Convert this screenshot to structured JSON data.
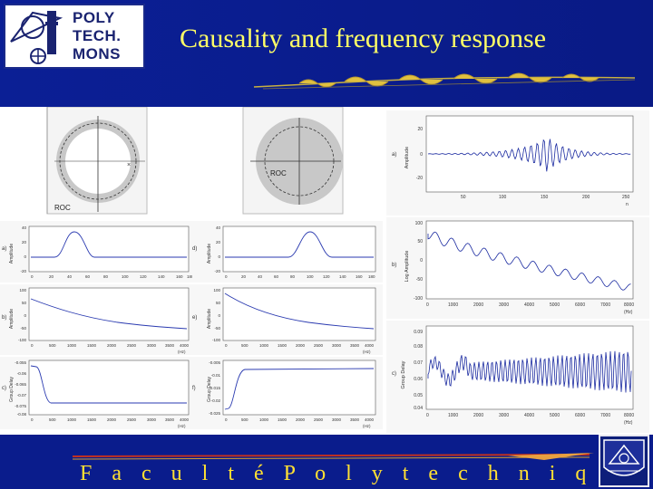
{
  "header": {
    "title": "Causality and frequency response",
    "logo_lines": [
      "POLY",
      "TECH.",
      "MONS"
    ]
  },
  "footer": {
    "text": "F a c u l t é   P o l y t e c h n i q u e  d e  M o n s"
  },
  "roc_diagrams": [
    {
      "label": "ROC"
    },
    {
      "label": "ROC"
    }
  ],
  "plots": {
    "a": {
      "panel": "a)",
      "ylabel": "Amplitude",
      "xticks": [
        "0",
        "20",
        "40",
        "60",
        "80",
        "100",
        "120",
        "140",
        "160",
        "180"
      ],
      "yticks": [
        "40",
        "20",
        "0",
        "-20"
      ]
    },
    "b": {
      "panel": "b)",
      "ylabel": "Amplitude",
      "xticks": [
        "0",
        "500",
        "1000",
        "1500",
        "2000",
        "2500",
        "3000",
        "3500",
        "4000"
      ],
      "xunit": "(Hz)",
      "yticks": [
        "100",
        "50",
        "0",
        "-50",
        "-100"
      ]
    },
    "c": {
      "panel": "c)",
      "ylabel": "Group Delay",
      "xticks": [
        "0",
        "500",
        "1000",
        "1500",
        "2000",
        "2500",
        "3000",
        "3500",
        "4000"
      ],
      "xunit": "(Hz)",
      "yticks": [
        "-0.055",
        "-0.06",
        "-0.065",
        "-0.07",
        "-0.075",
        "-0.08"
      ]
    },
    "d": {
      "panel": "d)",
      "ylabel": "Amplitude",
      "xticks": [
        "0",
        "20",
        "40",
        "60",
        "80",
        "100",
        "120",
        "140",
        "160",
        "180"
      ],
      "yticks": [
        "40",
        "20",
        "0",
        "-20"
      ]
    },
    "e": {
      "panel": "e)",
      "ylabel": "Amplitude",
      "xticks": [
        "0",
        "500",
        "1000",
        "1500",
        "2000",
        "2500",
        "3000",
        "3500",
        "4000"
      ],
      "xunit": "(Hz)",
      "yticks": [
        "100",
        "50",
        "0",
        "-50",
        "-100"
      ]
    },
    "f": {
      "panel": "f)",
      "ylabel": "Group Delay",
      "xticks": [
        "0",
        "500",
        "1000",
        "1500",
        "2000",
        "2500",
        "3000",
        "3500",
        "4000"
      ],
      "xunit": "(Hz)",
      "yticks": [
        "-0.005",
        "-0.01",
        "-0.015",
        "-0.02",
        "-0.025"
      ]
    },
    "g": {
      "panel": "a)",
      "ylabel": "Amplitude",
      "xticks": [
        "50",
        "100",
        "150",
        "200",
        "250"
      ],
      "xunit": "n",
      "yticks": [
        "20",
        "0",
        "-20"
      ]
    },
    "h": {
      "panel": "b)",
      "ylabel": "Log Amplitude",
      "xticks": [
        "0",
        "1000",
        "2000",
        "3000",
        "4000",
        "5000",
        "6000",
        "7000",
        "8000"
      ],
      "xunit": "(Hz)",
      "yticks": [
        "100",
        "50",
        "0",
        "-50",
        "-100"
      ]
    },
    "i": {
      "panel": "c)",
      "ylabel": "Group Delay",
      "xticks": [
        "0",
        "1000",
        "2000",
        "3000",
        "4000",
        "5000",
        "6000",
        "7000",
        "8000"
      ],
      "xunit": "(Hz)",
      "yticks": [
        "0.09",
        "0.08",
        "0.07",
        "0.06",
        "0.05",
        "0.04"
      ]
    }
  }
}
